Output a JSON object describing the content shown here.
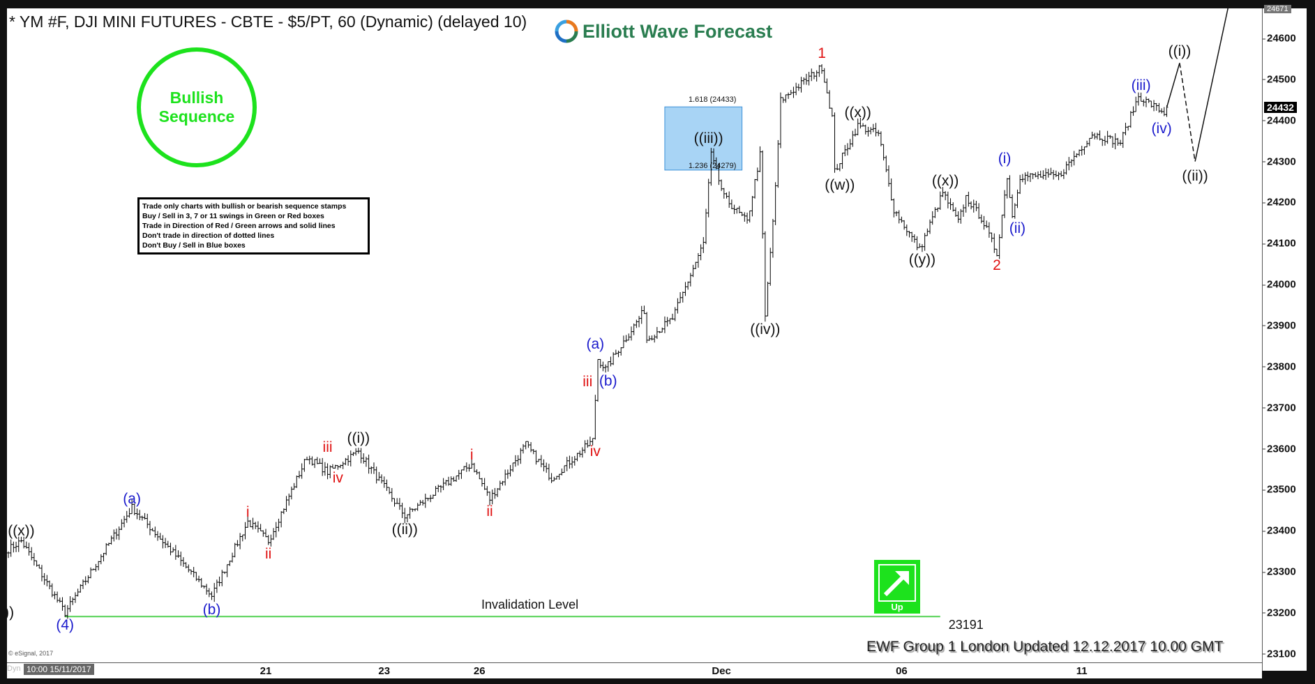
{
  "header": {
    "title": "* YM #F, DJI MINI FUTURES - CBTE - $5/PT, 60 (Dynamic) (delayed 10)",
    "logo_text": "Elliott Wave Forecast"
  },
  "stamp": {
    "line1": "Bullish",
    "line2": "Sequence",
    "color": "#1de21d"
  },
  "notes": [
    "Trade only charts with bullish or bearish sequence stamps",
    "Buy / Sell in 3, 7 or 11 swings in Green or Red boxes",
    "Trade in Direction of Red / Green arrows and solid lines",
    "Don't trade in direction of dotted lines",
    "Don't Buy / Sell in Blue boxes"
  ],
  "direction_badge": {
    "label": "Up",
    "icon": "arrow-up-right-icon",
    "color": "#1de21d"
  },
  "footer": "EWF Group 1 London Updated 12.12.2017 10.00 GMT",
  "copyright": "© eSignal, 2017",
  "date_axis": {
    "dyn_label": "Dyn",
    "start_label": "10:00 15/11/2017"
  },
  "chart_data": {
    "type": "ohlc",
    "interval": "60 min",
    "ylim": [
      23070,
      24680
    ],
    "y_ticks": [
      24600,
      24500,
      24400,
      24300,
      24200,
      24100,
      24000,
      23900,
      23800,
      23700,
      23600,
      23500,
      23400,
      23300,
      23200,
      23100
    ],
    "last_price": 24432,
    "high_marker": 24671,
    "x_ticks": [
      {
        "label": "21",
        "bar": 100
      },
      {
        "label": "23",
        "bar": 146
      },
      {
        "label": "26",
        "bar": 183
      },
      {
        "label": "Dec",
        "bar": 277
      },
      {
        "label": "06",
        "bar": 347
      },
      {
        "label": "11",
        "bar": 417
      }
    ],
    "price_path": [
      [
        0,
        23355
      ],
      [
        5,
        23375
      ],
      [
        22,
        23200
      ],
      [
        48,
        23457
      ],
      [
        79,
        23242
      ],
      [
        93,
        23422
      ],
      [
        101,
        23375
      ],
      [
        116,
        23580
      ],
      [
        124,
        23543
      ],
      [
        136,
        23594
      ],
      [
        154,
        23436
      ],
      [
        180,
        23563
      ],
      [
        187,
        23477
      ],
      [
        201,
        23610
      ],
      [
        211,
        23528
      ],
      [
        227,
        23620
      ],
      [
        229,
        23819
      ],
      [
        232,
        23794
      ],
      [
        247,
        23937
      ],
      [
        248,
        23866
      ],
      [
        258,
        23917
      ],
      [
        270,
        24100
      ],
      [
        273,
        24316
      ],
      [
        278,
        24213
      ],
      [
        287,
        24152
      ],
      [
        292,
        24316
      ],
      [
        294,
        23921
      ],
      [
        298,
        24234
      ],
      [
        300,
        24449
      ],
      [
        316,
        24530
      ],
      [
        320,
        24408
      ],
      [
        321,
        24275
      ],
      [
        330,
        24387
      ],
      [
        338,
        24367
      ],
      [
        344,
        24183
      ],
      [
        354,
        24085
      ],
      [
        363,
        24224
      ],
      [
        369,
        24152
      ],
      [
        372,
        24213
      ],
      [
        378,
        24162
      ],
      [
        384,
        24076
      ],
      [
        388,
        24264
      ],
      [
        390,
        24166
      ],
      [
        393,
        24264
      ],
      [
        408,
        24264
      ],
      [
        421,
        24367
      ],
      [
        432,
        24346
      ],
      [
        439,
        24459
      ],
      [
        449,
        24418
      ],
      [
        450,
        24432
      ]
    ],
    "projection": [
      {
        "bar": 450,
        "price": 24432,
        "style": "solid"
      },
      {
        "bar": 455,
        "price": 24540,
        "style": "dashed"
      },
      {
        "bar": 461,
        "price": 24300,
        "style": "solid"
      },
      {
        "bar": 474,
        "price": 24680,
        "style": "solid"
      }
    ],
    "fib_box": {
      "bar_from": 255,
      "bar_to": 285,
      "top": 24433,
      "bottom": 24279,
      "top_label": "1.618 (24433)",
      "bottom_label": "1.236 (24279)",
      "color": "#a8d4f5"
    },
    "invalidation": {
      "label": "Invalidation Level",
      "price": 23191,
      "value_label": "23191",
      "bar_from": 22,
      "bar_to": 362,
      "color": "#4fd14f"
    },
    "wave_labels": [
      {
        "text": "((v))",
        "bar": -3,
        "price": 23199,
        "color": "#111111"
      },
      {
        "text": "((x))",
        "bar": 5,
        "price": 23398,
        "color": "#111111"
      },
      {
        "text": "(4)",
        "bar": 22,
        "price": 23169,
        "color": "#1a1acc"
      },
      {
        "text": "(a)",
        "bar": 48,
        "price": 23477,
        "color": "#1a1acc"
      },
      {
        "text": "(b)",
        "bar": 79,
        "price": 23207,
        "color": "#1a1acc"
      },
      {
        "text": "i",
        "bar": 93,
        "price": 23445,
        "color": "#e01010"
      },
      {
        "text": "ii",
        "bar": 101,
        "price": 23342,
        "color": "#e01010"
      },
      {
        "text": "iii",
        "bar": 124,
        "price": 23602,
        "color": "#e01010"
      },
      {
        "text": "iv",
        "bar": 128,
        "price": 23528,
        "color": "#e01010"
      },
      {
        "text": "((i))",
        "bar": 136,
        "price": 23625,
        "color": "#111111"
      },
      {
        "text": "((ii))",
        "bar": 154,
        "price": 23402,
        "color": "#111111"
      },
      {
        "text": "i",
        "bar": 180,
        "price": 23584,
        "color": "#e01010"
      },
      {
        "text": "ii",
        "bar": 187,
        "price": 23447,
        "color": "#e01010"
      },
      {
        "text": "iii",
        "bar": 225,
        "price": 23762,
        "color": "#e01010"
      },
      {
        "text": "iv",
        "bar": 228,
        "price": 23592,
        "color": "#e01010"
      },
      {
        "text": "(a)",
        "bar": 228,
        "price": 23854,
        "color": "#1a1acc"
      },
      {
        "text": "(b)",
        "bar": 233,
        "price": 23764,
        "color": "#1a1acc"
      },
      {
        "text": "((iii))",
        "bar": 272,
        "price": 24355,
        "color": "#111111"
      },
      {
        "text": "((iv))",
        "bar": 294,
        "price": 23890,
        "color": "#111111"
      },
      {
        "text": "1",
        "bar": 316,
        "price": 24563,
        "color": "#e01010"
      },
      {
        "text": "((w))",
        "bar": 323,
        "price": 24242,
        "color": "#111111"
      },
      {
        "text": "((x))",
        "bar": 330,
        "price": 24418,
        "color": "#111111"
      },
      {
        "text": "((y))",
        "bar": 355,
        "price": 24060,
        "color": "#111111"
      },
      {
        "text": "((x))",
        "bar": 364,
        "price": 24252,
        "color": "#111111"
      },
      {
        "text": "2",
        "bar": 384,
        "price": 24046,
        "color": "#e01010"
      },
      {
        "text": "(i)",
        "bar": 387,
        "price": 24306,
        "color": "#1a1acc"
      },
      {
        "text": "(ii)",
        "bar": 392,
        "price": 24136,
        "color": "#1a1acc"
      },
      {
        "text": "(iii)",
        "bar": 440,
        "price": 24485,
        "color": "#1a1acc"
      },
      {
        "text": "(iv)",
        "bar": 448,
        "price": 24379,
        "color": "#1a1acc"
      },
      {
        "text": "((i))",
        "bar": 455,
        "price": 24567,
        "color": "#111111"
      },
      {
        "text": "((ii))",
        "bar": 461,
        "price": 24263,
        "color": "#111111"
      }
    ]
  }
}
